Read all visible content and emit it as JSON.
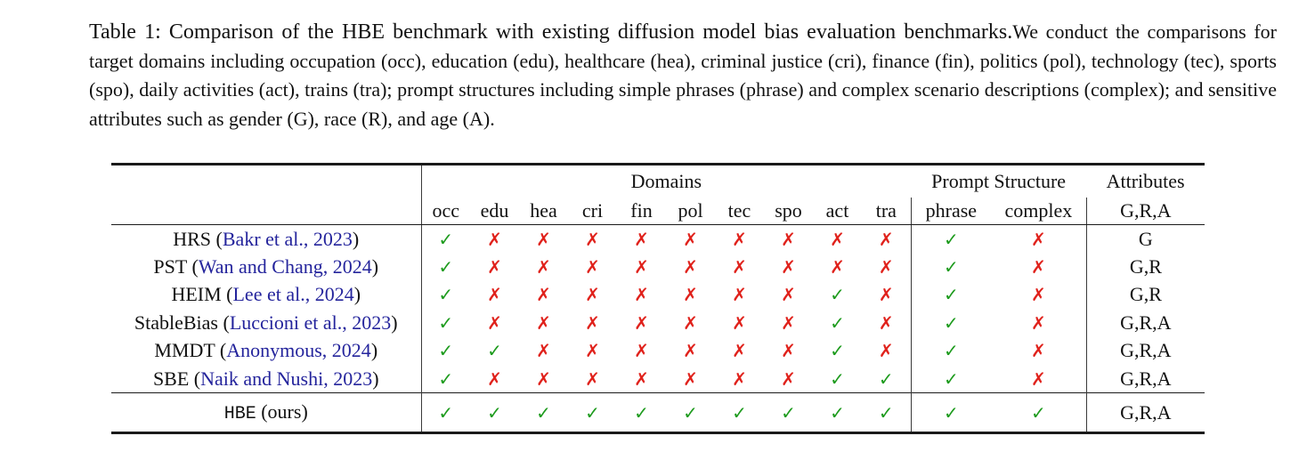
{
  "caption": {
    "title_part": "Table 1: Comparison of the HBE benchmark with existing diffusion model bias evaluation benchmarks.",
    "body_part": "We conduct the comparisons for target domains including occupation (occ), education (edu), healthcare (hea), criminal justice (cri), finance (fin), politics (pol), technology (tec), sports (spo), daily activities (act), trains (tra); prompt structures including simple phrases (phrase) and complex scenario descriptions (complex); and sensitive attributes such as gender (G), race (R), and age (A)."
  },
  "table": {
    "column_groups": {
      "domains": "Domains",
      "prompt_structure": "Prompt Structure",
      "attributes": "Attributes"
    },
    "domain_columns": [
      "occ",
      "edu",
      "hea",
      "cri",
      "fin",
      "pol",
      "tec",
      "spo",
      "act",
      "tra"
    ],
    "prompt_columns": [
      "phrase",
      "complex"
    ],
    "attributes_header": "G,R,A",
    "rows": [
      {
        "name": "HRS",
        "citation": "Bakr et al., 2023",
        "domains": [
          1,
          0,
          0,
          0,
          0,
          0,
          0,
          0,
          0,
          0
        ],
        "prompt": [
          1,
          0
        ],
        "attributes": "G"
      },
      {
        "name": "PST",
        "citation": "Wan and Chang, 2024",
        "domains": [
          1,
          0,
          0,
          0,
          0,
          0,
          0,
          0,
          0,
          0
        ],
        "prompt": [
          1,
          0
        ],
        "attributes": "G,R"
      },
      {
        "name": "HEIM",
        "citation": "Lee et al., 2024",
        "domains": [
          1,
          0,
          0,
          0,
          0,
          0,
          0,
          0,
          1,
          0
        ],
        "prompt": [
          1,
          0
        ],
        "attributes": "G,R"
      },
      {
        "name": "StableBias",
        "citation": "Luccioni et al., 2023",
        "domains": [
          1,
          0,
          0,
          0,
          0,
          0,
          0,
          0,
          1,
          0
        ],
        "prompt": [
          1,
          0
        ],
        "attributes": "G,R,A"
      },
      {
        "name": "MMDT",
        "citation": "Anonymous, 2024",
        "domains": [
          1,
          1,
          0,
          0,
          0,
          0,
          0,
          0,
          1,
          0
        ],
        "prompt": [
          1,
          0
        ],
        "attributes": "G,R,A"
      },
      {
        "name": "SBE",
        "citation": "Naik and Nushi, 2023",
        "domains": [
          1,
          0,
          0,
          0,
          0,
          0,
          0,
          0,
          1,
          1
        ],
        "prompt": [
          1,
          0
        ],
        "attributes": "G,R,A"
      }
    ],
    "ours_row": {
      "name": "HBE",
      "suffix": "(ours)",
      "domains": [
        1,
        1,
        1,
        1,
        1,
        1,
        1,
        1,
        1,
        1
      ],
      "prompt": [
        1,
        1
      ],
      "attributes": "G,R,A"
    }
  },
  "marks": {
    "check": "✓",
    "cross": "✗",
    "check_color": "#1d9b1d",
    "cross_color": "#e0221c"
  },
  "colors": {
    "citation": "#24249c",
    "text": "#111111"
  }
}
